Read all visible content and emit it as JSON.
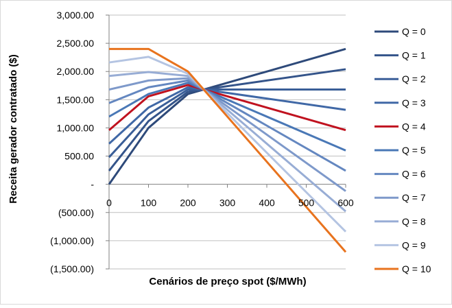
{
  "chart_data": {
    "type": "line",
    "xlabel": "Cenários de preço spot ($/MWh)",
    "ylabel": "Receita gerador contratado ($)",
    "x": [
      0,
      100,
      200,
      300,
      400,
      500,
      600
    ],
    "xlim": [
      0,
      600
    ],
    "ylim": [
      -1500,
      3000
    ],
    "y_ticks": [
      3000,
      2500,
      2000,
      1500,
      1000,
      500,
      0,
      -500,
      -1000,
      -1500
    ],
    "y_tick_labels": [
      "3,000.00",
      "2,500.00",
      "2,000.00",
      "1,500.00",
      "1,000.00",
      "500.00",
      "-",
      "(500.00)",
      "(1,000.00)",
      "(1,500.00)"
    ],
    "x_tick_labels": [
      "0",
      "100",
      "200",
      "300",
      "400",
      "500",
      "600"
    ],
    "grid": "horizontal",
    "legend_position": "right",
    "series": [
      {
        "name": "Q = 0",
        "color": "#2E4A7A",
        "points": [
          [
            0,
            0
          ],
          [
            100,
            1000
          ],
          [
            200,
            1600
          ],
          [
            240,
            1680
          ],
          [
            600,
            2400
          ]
        ]
      },
      {
        "name": "Q = 1",
        "color": "#34548A",
        "points": [
          [
            0,
            240
          ],
          [
            100,
            1120
          ],
          [
            200,
            1640
          ],
          [
            240,
            1680
          ],
          [
            600,
            2040
          ]
        ]
      },
      {
        "name": "Q = 2",
        "color": "#3A5E98",
        "points": [
          [
            0,
            480
          ],
          [
            100,
            1240
          ],
          [
            200,
            1680
          ],
          [
            240,
            1680
          ],
          [
            600,
            1680
          ]
        ]
      },
      {
        "name": "Q = 3",
        "color": "#4068A6",
        "points": [
          [
            0,
            720
          ],
          [
            100,
            1360
          ],
          [
            200,
            1720
          ],
          [
            240,
            1680
          ],
          [
            600,
            1320
          ]
        ]
      },
      {
        "name": "Q = 4",
        "color": "#C0121F",
        "points": [
          [
            0,
            960
          ],
          [
            100,
            1560
          ],
          [
            200,
            1760
          ],
          [
            240,
            1680
          ],
          [
            600,
            960
          ]
        ]
      },
      {
        "name": "Q = 5",
        "color": "#4A78B6",
        "points": [
          [
            0,
            1200
          ],
          [
            100,
            1600
          ],
          [
            200,
            1800
          ],
          [
            240,
            1680
          ],
          [
            600,
            600
          ]
        ]
      },
      {
        "name": "Q = 6",
        "color": "#6487C0",
        "points": [
          [
            0,
            1440
          ],
          [
            100,
            1720
          ],
          [
            200,
            1840
          ],
          [
            240,
            1680
          ],
          [
            600,
            240
          ]
        ]
      },
      {
        "name": "Q = 7",
        "color": "#7E99CA",
        "points": [
          [
            0,
            1680
          ],
          [
            100,
            1840
          ],
          [
            200,
            1880
          ],
          [
            240,
            1680
          ],
          [
            600,
            -120
          ]
        ]
      },
      {
        "name": "Q = 8",
        "color": "#98ADD5",
        "points": [
          [
            0,
            1920
          ],
          [
            100,
            1990
          ],
          [
            200,
            1920
          ],
          [
            240,
            1680
          ],
          [
            600,
            -480
          ]
        ]
      },
      {
        "name": "Q = 9",
        "color": "#B4C4E2",
        "points": [
          [
            0,
            2160
          ],
          [
            100,
            2260
          ],
          [
            200,
            1960
          ],
          [
            240,
            1680
          ],
          [
            600,
            -840
          ]
        ]
      },
      {
        "name": "Q = 10",
        "color": "#E8731E",
        "points": [
          [
            0,
            2400
          ],
          [
            100,
            2400
          ],
          [
            200,
            2000
          ],
          [
            240,
            1680
          ],
          [
            600,
            -1200
          ]
        ]
      }
    ]
  }
}
